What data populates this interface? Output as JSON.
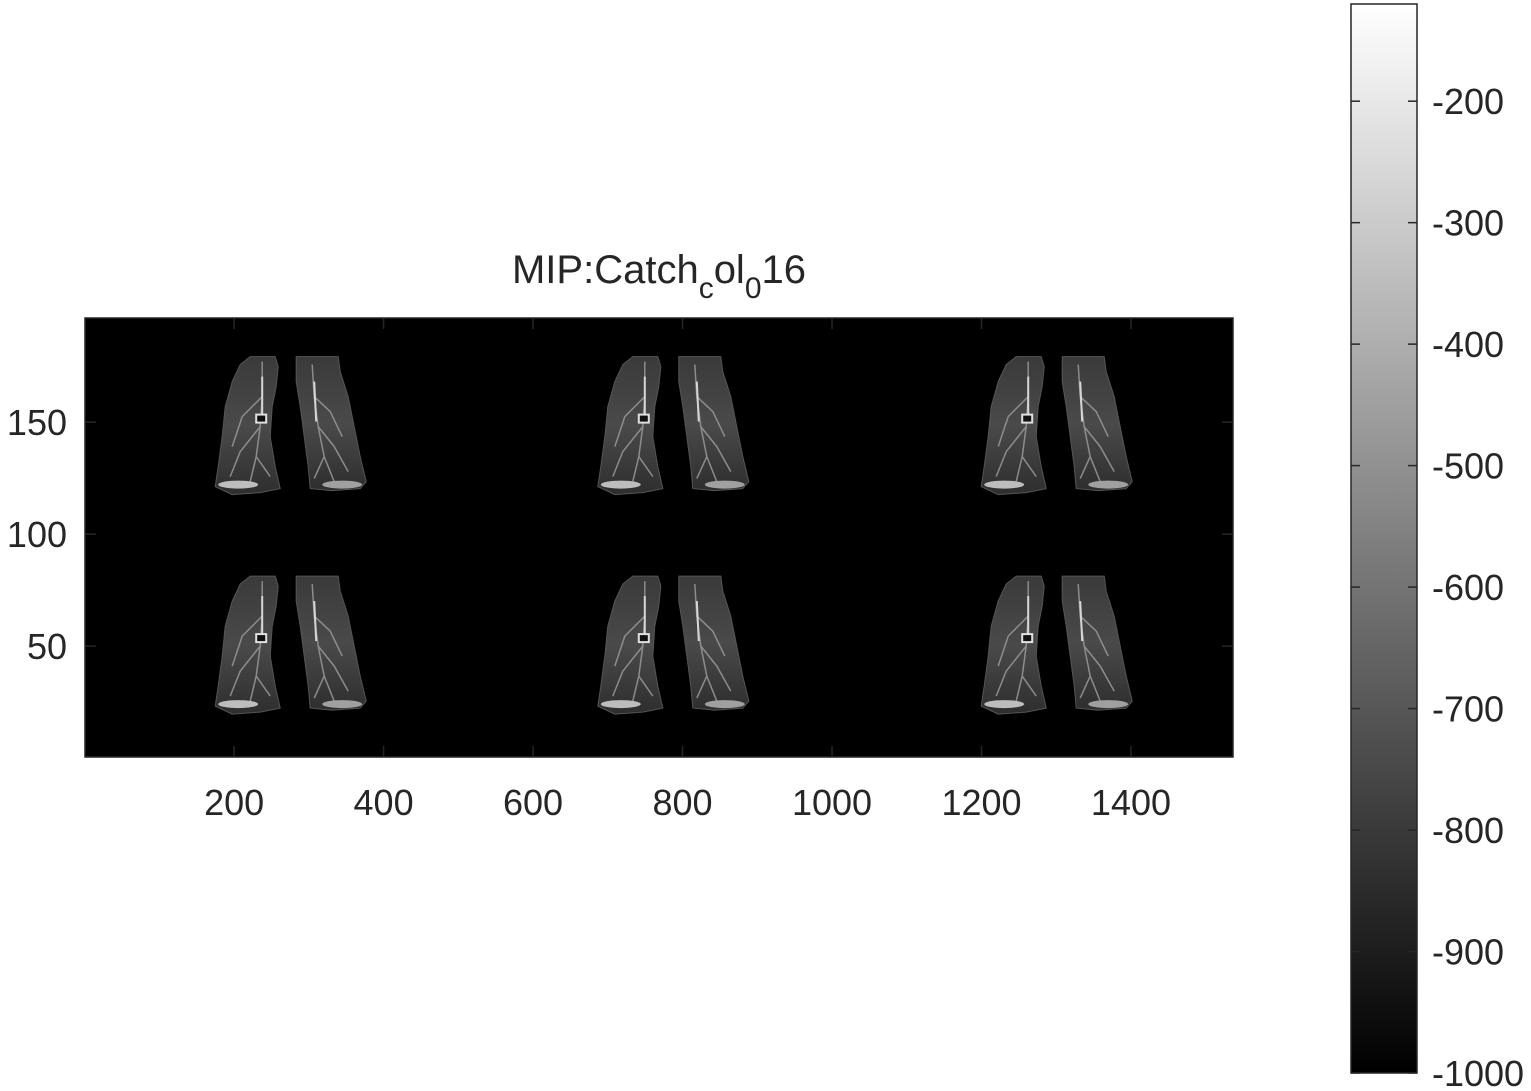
{
  "title": {
    "main": "MIP:Catch",
    "sub1": "c",
    "mid": "ol",
    "sub2": "0",
    "tail": "16"
  },
  "image_axes": {
    "x_ticks": [
      {
        "value": 200,
        "label": "200"
      },
      {
        "value": 400,
        "label": "400"
      },
      {
        "value": 600,
        "label": "600"
      },
      {
        "value": 800,
        "label": "800"
      },
      {
        "value": 1000,
        "label": "1000"
      },
      {
        "value": 1200,
        "label": "1200"
      },
      {
        "value": 1400,
        "label": "1400"
      }
    ],
    "y_ticks": [
      {
        "value": 150,
        "label": "150"
      },
      {
        "value": 100,
        "label": "100"
      },
      {
        "value": 50,
        "label": "50"
      }
    ],
    "xlim": [
      0.5,
      1536.5
    ],
    "ylim": [
      0.5,
      196.5
    ],
    "y_direction": "normal",
    "background": "#000000"
  },
  "panels": {
    "rows": 2,
    "cols": 3,
    "content": "lung-mip",
    "centers_x": [
      275,
      787,
      1300
    ],
    "centers_y": [
      148,
      50
    ]
  },
  "colorbar": {
    "colormap": "gray",
    "range": [
      -1000,
      -120
    ],
    "ticks": [
      {
        "value": -200,
        "label": "-200"
      },
      {
        "value": -300,
        "label": "-300"
      },
      {
        "value": -400,
        "label": "-400"
      },
      {
        "value": -500,
        "label": "-500"
      },
      {
        "value": -600,
        "label": "-600"
      },
      {
        "value": -700,
        "label": "-700"
      },
      {
        "value": -800,
        "label": "-800"
      },
      {
        "value": -900,
        "label": "-900"
      },
      {
        "value": -1000,
        "label": "-1000"
      }
    ]
  }
}
